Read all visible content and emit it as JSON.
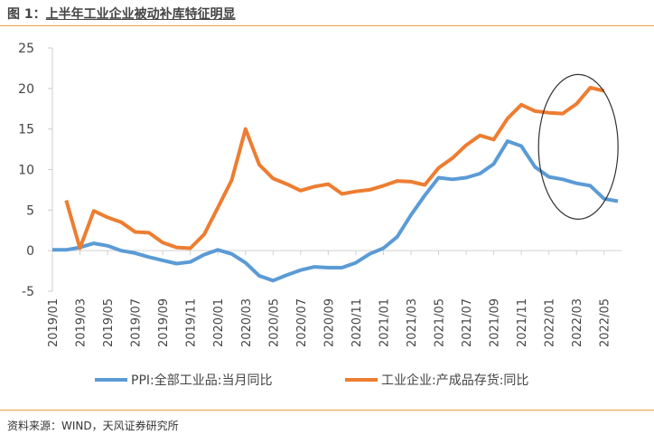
{
  "title_prefix": "图 1：",
  "title_main": "上半年工业企业被动补库特征明显",
  "source": "资料来源：WIND，天风证券研究所",
  "chart_data": {
    "type": "line",
    "title": "上半年工业企业被动补库特征明显",
    "xlabel": "",
    "ylabel": "",
    "ylim": [
      -5,
      25
    ],
    "yticks": [
      -5,
      0,
      5,
      10,
      15,
      20,
      25
    ],
    "grid": false,
    "legend": "bottom",
    "x": [
      "2019/01",
      "2019/02",
      "2019/03",
      "2019/04",
      "2019/05",
      "2019/06",
      "2019/07",
      "2019/08",
      "2019/09",
      "2019/10",
      "2019/11",
      "2019/12",
      "2020/01",
      "2020/02",
      "2020/03",
      "2020/04",
      "2020/05",
      "2020/06",
      "2020/07",
      "2020/08",
      "2020/09",
      "2020/10",
      "2020/11",
      "2020/12",
      "2021/01",
      "2021/02",
      "2021/03",
      "2021/04",
      "2021/05",
      "2021/06",
      "2021/07",
      "2021/08",
      "2021/09",
      "2021/10",
      "2021/11",
      "2021/12",
      "2022/01",
      "2022/02",
      "2022/03",
      "2022/04",
      "2022/05",
      "2022/06"
    ],
    "xtick_labels": [
      "2019/01",
      "2019/03",
      "2019/05",
      "2019/07",
      "2019/09",
      "2019/11",
      "2020/01",
      "2020/03",
      "2020/05",
      "2020/07",
      "2020/09",
      "2020/11",
      "2021/01",
      "2021/03",
      "2021/05",
      "2021/07",
      "2021/09",
      "2021/11",
      "2022/01",
      "2022/03",
      "2022/05"
    ],
    "series": [
      {
        "name": "PPI:全部工业品:当月同比",
        "color": "#5b9bd5",
        "values": [
          0.1,
          0.1,
          0.4,
          0.9,
          0.6,
          0,
          -0.3,
          -0.8,
          -1.2,
          -1.6,
          -1.4,
          -0.5,
          0.1,
          -0.4,
          -1.5,
          -3.1,
          -3.7,
          -3.0,
          -2.4,
          -2.0,
          -2.1,
          -2.1,
          -1.5,
          -0.4,
          0.3,
          1.7,
          4.4,
          6.8,
          9.0,
          8.8,
          9.0,
          9.5,
          10.7,
          13.5,
          12.9,
          10.3,
          9.1,
          8.8,
          8.3,
          8.0,
          6.4,
          6.1
        ]
      },
      {
        "name": "工业企业:产成品存货:同比",
        "color": "#ed7d31",
        "values": [
          null,
          6.2,
          0.3,
          4.9,
          4.1,
          3.5,
          2.3,
          2.2,
          1.0,
          0.4,
          0.3,
          2.0,
          5.3,
          8.7,
          15.0,
          10.6,
          8.9,
          8.2,
          7.4,
          7.9,
          8.2,
          7.0,
          7.3,
          7.5,
          8.0,
          8.6,
          8.5,
          8.1,
          10.2,
          11.4,
          13.0,
          14.2,
          13.7,
          16.3,
          18.0,
          17.2,
          17.0,
          16.9,
          18.1,
          20.1,
          19.7,
          null
        ]
      }
    ],
    "annotations": [
      {
        "type": "ellipse",
        "around": [
          "2022/01",
          "2022/05"
        ]
      }
    ]
  }
}
